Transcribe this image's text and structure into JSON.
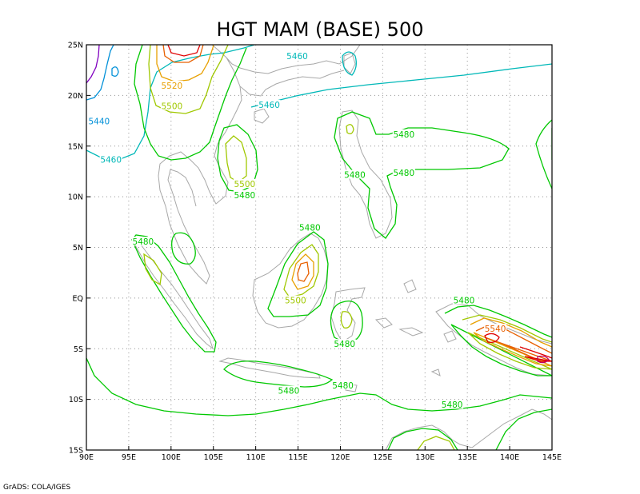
{
  "chart_data": {
    "type": "contour",
    "title": "HGT MAM (BASE) 500",
    "credit": "GrADS: COLA/IGES",
    "xlim": [
      90,
      145
    ],
    "ylim": [
      -15,
      25
    ],
    "x_ticks": [
      {
        "value": 90,
        "label": "90E"
      },
      {
        "value": 95,
        "label": "95E"
      },
      {
        "value": 100,
        "label": "100E"
      },
      {
        "value": 105,
        "label": "105E"
      },
      {
        "value": 110,
        "label": "110E"
      },
      {
        "value": 115,
        "label": "115E"
      },
      {
        "value": 120,
        "label": "120E"
      },
      {
        "value": 125,
        "label": "125E"
      },
      {
        "value": 130,
        "label": "130E"
      },
      {
        "value": 135,
        "label": "135E"
      },
      {
        "value": 140,
        "label": "140E"
      },
      {
        "value": 145,
        "label": "145E"
      }
    ],
    "y_ticks": [
      {
        "value": 25,
        "label": "25N"
      },
      {
        "value": 20,
        "label": "20N"
      },
      {
        "value": 15,
        "label": "15N"
      },
      {
        "value": 10,
        "label": "10N"
      },
      {
        "value": 5,
        "label": "5N"
      },
      {
        "value": 0,
        "label": "EQ"
      },
      {
        "value": -5,
        "label": "5S"
      },
      {
        "value": -10,
        "label": "10S"
      },
      {
        "value": -15,
        "label": "15S"
      }
    ],
    "grid": true,
    "colors": {
      "5420": "#8000c0",
      "5440": "#0090d8",
      "5460": "#00b8b8",
      "5480": "#00c800",
      "5500": "#a0c800",
      "5520": "#e8a000",
      "5540": "#e86000",
      "5560": "#e00000",
      "5580": "#c00060",
      "coast": "#a8a8a8",
      "grid": "#909090"
    },
    "contour_labels": [
      {
        "text": "5460",
        "lon": 114.9,
        "lat": 23.8,
        "level": "5460"
      },
      {
        "text": "5460",
        "lon": 111.6,
        "lat": 19.0,
        "level": "5460"
      },
      {
        "text": "5440",
        "lon": 91.5,
        "lat": 17.4,
        "level": "5440"
      },
      {
        "text": "5460",
        "lon": 92.9,
        "lat": 13.6,
        "level": "5460"
      },
      {
        "text": "5520",
        "lon": 100.1,
        "lat": 20.9,
        "level": "5520"
      },
      {
        "text": "5500",
        "lon": 100.1,
        "lat": 18.9,
        "level": "5500"
      },
      {
        "text": "5480",
        "lon": 127.5,
        "lat": 16.1,
        "level": "5480"
      },
      {
        "text": "5480",
        "lon": 127.5,
        "lat": 12.3,
        "level": "5480"
      },
      {
        "text": "5480",
        "lon": 121.7,
        "lat": 12.1,
        "level": "5480"
      },
      {
        "text": "5500",
        "lon": 108.7,
        "lat": 11.2,
        "level": "5500"
      },
      {
        "text": "5480",
        "lon": 108.7,
        "lat": 10.1,
        "level": "5480"
      },
      {
        "text": "5480",
        "lon": 116.4,
        "lat": 6.9,
        "level": "5480"
      },
      {
        "text": "5480",
        "lon": 96.7,
        "lat": 5.5,
        "level": "5480"
      },
      {
        "text": "5500",
        "lon": 114.7,
        "lat": -0.3,
        "level": "5500"
      },
      {
        "text": "5480",
        "lon": 134.6,
        "lat": -0.3,
        "level": "5480"
      },
      {
        "text": "5540",
        "lon": 138.3,
        "lat": -3.1,
        "level": "5540"
      },
      {
        "text": "5480",
        "lon": 120.5,
        "lat": -4.6,
        "level": "5480"
      },
      {
        "text": "5480",
        "lon": 113.9,
        "lat": -9.2,
        "level": "5480"
      },
      {
        "text": "5480",
        "lon": 120.3,
        "lat": -8.7,
        "level": "5480"
      },
      {
        "text": "5480",
        "lon": 133.2,
        "lat": -10.6,
        "level": "5480"
      }
    ]
  }
}
